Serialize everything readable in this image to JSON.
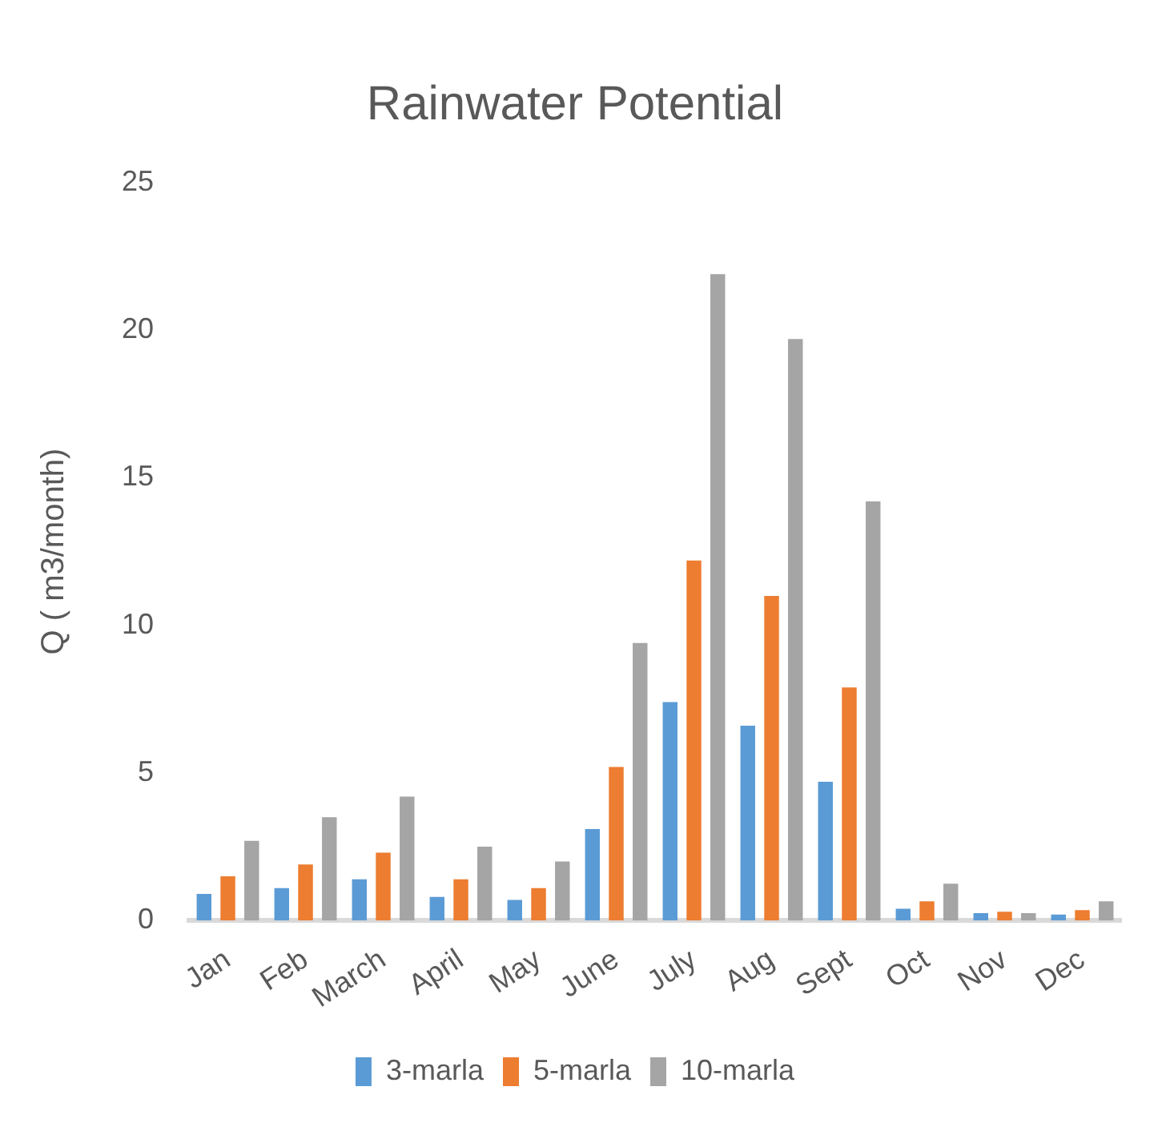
{
  "chart_data": {
    "type": "bar",
    "title": "Rainwater Potential",
    "ylabel": "Q ( m3/month)",
    "categories": [
      "Jan",
      "Feb",
      "March",
      "April",
      "May",
      "June",
      "July",
      "Aug",
      "Sept",
      "Oct",
      "Nov",
      "Dec"
    ],
    "series": [
      {
        "name": "3-marla",
        "color": "#5b9bd5",
        "values": [
          0.9,
          1.1,
          1.4,
          0.8,
          0.7,
          3.1,
          7.4,
          6.6,
          4.7,
          0.4,
          0.25,
          0.2
        ]
      },
      {
        "name": "5-marla",
        "color": "#ed7d31",
        "values": [
          1.5,
          1.9,
          2.3,
          1.4,
          1.1,
          5.2,
          12.2,
          11.0,
          7.9,
          0.65,
          0.3,
          0.35
        ]
      },
      {
        "name": "10-marla",
        "color": "#a5a5a5",
        "values": [
          2.7,
          3.5,
          4.2,
          2.5,
          2.0,
          9.4,
          21.9,
          19.7,
          14.2,
          1.25,
          0.25,
          0.65
        ]
      }
    ],
    "ylim": [
      0,
      25
    ],
    "yticks": [
      0,
      5,
      10,
      15,
      20,
      25
    ],
    "grid": false,
    "legend": "bottom"
  }
}
